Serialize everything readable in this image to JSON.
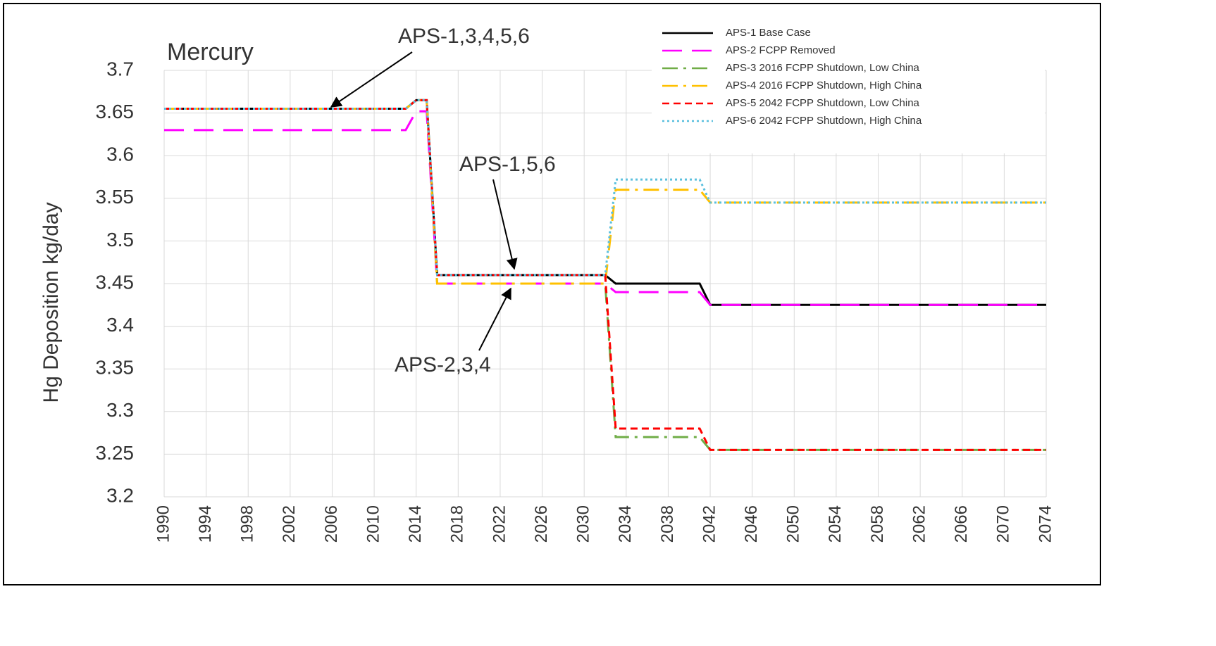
{
  "chart_data": {
    "type": "line",
    "title": "Mercury",
    "y_label": "Hg Deposition kg/day",
    "annotations": [
      "APS-1,3,4,5,6",
      "APS-1,5,6",
      "APS-2,3,4"
    ],
    "x": [
      1990,
      2013,
      2014,
      2015,
      2016,
      2032,
      2033,
      2041,
      2042,
      2074
    ],
    "series": [
      {
        "name": "APS-1 Base Case",
        "color": "#000000",
        "dash": "solid",
        "values": [
          3.655,
          3.655,
          3.665,
          3.665,
          3.46,
          3.46,
          3.45,
          3.45,
          3.425,
          3.425
        ]
      },
      {
        "name": "APS-2 FCPP Removed",
        "color": "#ff00ff",
        "dash": "longdash",
        "values": [
          3.63,
          3.63,
          3.652,
          3.652,
          3.45,
          3.45,
          3.44,
          3.44,
          3.425,
          3.425
        ]
      },
      {
        "name": "APS-3 2016 FCPP Shutdown, Low China",
        "color": "#70ad47",
        "dash": "dashdot",
        "values": [
          3.655,
          3.655,
          3.665,
          3.665,
          3.45,
          3.45,
          3.27,
          3.27,
          3.255,
          3.255
        ]
      },
      {
        "name": "APS-4 2016 FCPP Shutdown, High China",
        "color": "#ffc000",
        "dash": "dashdot",
        "values": [
          3.655,
          3.655,
          3.665,
          3.665,
          3.45,
          3.45,
          3.56,
          3.56,
          3.545,
          3.545
        ]
      },
      {
        "name": "APS-5 2042 FCPP Shutdown, Low China",
        "color": "#ff0000",
        "dash": "shortdash",
        "values": [
          3.655,
          3.655,
          3.665,
          3.665,
          3.46,
          3.46,
          3.28,
          3.28,
          3.255,
          3.255
        ]
      },
      {
        "name": "APS-6 2042 FCPP Shutdown, High China",
        "color": "#5bc0de",
        "dash": "dotted",
        "values": [
          3.655,
          3.655,
          3.665,
          3.665,
          3.46,
          3.46,
          3.572,
          3.572,
          3.545,
          3.545
        ]
      }
    ],
    "xlim": [
      1990,
      2074
    ],
    "xticks": [
      1990,
      1994,
      1998,
      2002,
      2006,
      2010,
      2014,
      2018,
      2022,
      2026,
      2030,
      2034,
      2038,
      2042,
      2046,
      2050,
      2054,
      2058,
      2062,
      2066,
      2070,
      2074
    ],
    "ylim": [
      3.2,
      3.7
    ],
    "yticks": [
      3.2,
      3.25,
      3.3,
      3.35,
      3.4,
      3.45,
      3.5,
      3.55,
      3.6,
      3.65,
      3.7
    ],
    "grid": true,
    "legend": "top-right"
  }
}
